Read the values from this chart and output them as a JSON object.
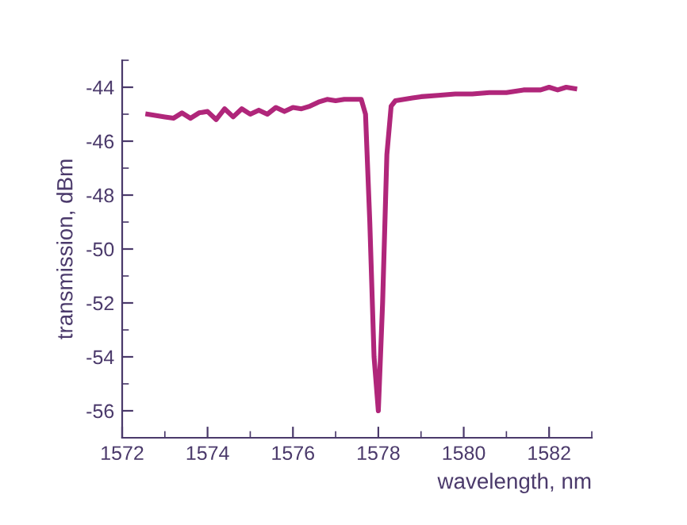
{
  "chart_data": {
    "type": "line",
    "xlabel": "wavelength, nm",
    "ylabel": "transmission, dBm",
    "x": [
      1572.6,
      1572.8,
      1573.0,
      1573.2,
      1573.4,
      1573.6,
      1573.8,
      1574.0,
      1574.2,
      1574.4,
      1574.6,
      1574.8,
      1575.0,
      1575.2,
      1575.4,
      1575.6,
      1575.8,
      1576.0,
      1576.2,
      1576.4,
      1576.6,
      1576.8,
      1577.0,
      1577.2,
      1577.4,
      1577.6,
      1577.7,
      1577.8,
      1577.9,
      1578.0,
      1578.1,
      1578.2,
      1578.3,
      1578.4,
      1578.6,
      1578.8,
      1579.0,
      1579.4,
      1579.8,
      1580.2,
      1580.6,
      1581.0,
      1581.4,
      1581.8,
      1582.0,
      1582.2,
      1582.4,
      1582.6
    ],
    "series": [
      {
        "color": "#b0267a",
        "values": [
          -45.0,
          -45.05,
          -45.1,
          -45.15,
          -44.95,
          -45.15,
          -44.95,
          -44.9,
          -45.2,
          -44.8,
          -45.1,
          -44.8,
          -45.0,
          -44.85,
          -45.0,
          -44.75,
          -44.9,
          -44.75,
          -44.8,
          -44.7,
          -44.55,
          -44.45,
          -44.5,
          -44.45,
          -44.45,
          -44.45,
          -45.0,
          -49.0,
          -54.0,
          -56.0,
          -52.0,
          -46.5,
          -44.7,
          -44.5,
          -44.45,
          -44.4,
          -44.35,
          -44.3,
          -44.25,
          -44.25,
          -44.2,
          -44.2,
          -44.1,
          -44.1,
          -44.0,
          -44.1,
          -44.0,
          -44.05
        ]
      }
    ],
    "xlim": [
      1572,
      1583
    ],
    "xticks": [
      1572,
      1574,
      1576,
      1578,
      1580,
      1582
    ],
    "ylim": [
      -57,
      -43
    ],
    "yticks": [
      -56,
      -54,
      -52,
      -50,
      -48,
      -46,
      -44
    ],
    "grid": false,
    "marker": "none",
    "line_style": "solid"
  }
}
